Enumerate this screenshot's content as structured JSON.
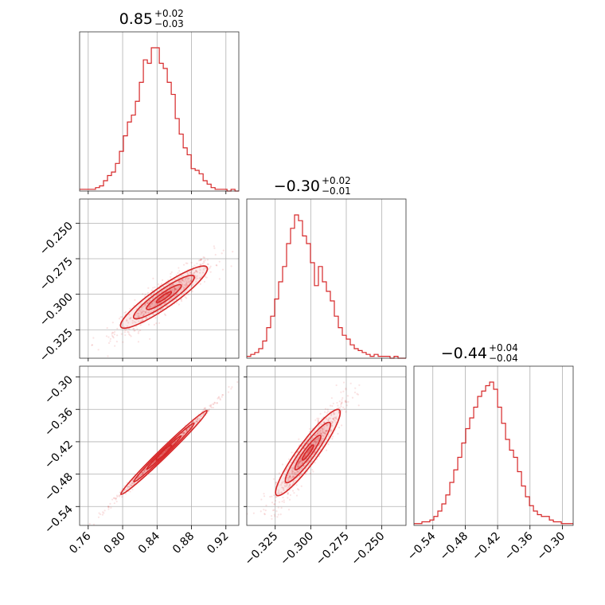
{
  "chart_data": {
    "type": "corner",
    "color": "#d62728",
    "grid": true,
    "parameters": [
      {
        "range": [
          0.75,
          0.935
        ],
        "ticks": [
          "0.76",
          "0.80",
          "0.84",
          "0.88",
          "0.92"
        ],
        "tick_values": [
          0.76,
          0.8,
          0.84,
          0.88,
          0.92
        ],
        "title": {
          "value": "0.85",
          "plus": "+0.02",
          "minus": "−0.03"
        },
        "histogram": {
          "start": 0.75,
          "bin_width": 0.00463,
          "counts": [
            1,
            1,
            1,
            1,
            2,
            3,
            6,
            9,
            11,
            16,
            23,
            32,
            40,
            44,
            52,
            63,
            76,
            74,
            83,
            83,
            74,
            71,
            63,
            56,
            42,
            33,
            25,
            21,
            13,
            12,
            10,
            6,
            4,
            2,
            1,
            1,
            1,
            0,
            1,
            0
          ]
        }
      },
      {
        "range": [
          -0.345,
          -0.233
        ],
        "ticks": [
          "−0.325",
          "−0.300",
          "−0.275",
          "−0.250"
        ],
        "tick_values": [
          -0.325,
          -0.3,
          -0.275,
          -0.25
        ],
        "title": {
          "value": "−0.30",
          "plus": "+0.02",
          "minus": "−0.01"
        },
        "histogram": {
          "start": -0.345,
          "bin_width": 0.0028,
          "counts": [
            1,
            2,
            3,
            5,
            9,
            16,
            22,
            31,
            40,
            48,
            60,
            68,
            75,
            72,
            64,
            60,
            50,
            38,
            48,
            40,
            35,
            30,
            22,
            16,
            12,
            10,
            7,
            5,
            4,
            3,
            2,
            1,
            2,
            1,
            1,
            1,
            0,
            1,
            0,
            0
          ]
        }
      },
      {
        "range": [
          -0.575,
          -0.28
        ],
        "ticks": [
          "−0.54",
          "−0.48",
          "−0.42",
          "−0.36",
          "−0.30"
        ],
        "tick_values": [
          -0.54,
          -0.48,
          -0.42,
          -0.36,
          -0.3
        ],
        "title": {
          "value": "−0.44",
          "plus": "+0.04",
          "minus": "−0.04"
        },
        "histogram": {
          "start": -0.575,
          "bin_width": 0.00738,
          "counts": [
            1,
            1,
            2,
            2,
            3,
            5,
            8,
            12,
            17,
            24,
            31,
            38,
            46,
            54,
            60,
            66,
            72,
            75,
            78,
            80,
            76,
            66,
            57,
            48,
            42,
            38,
            30,
            22,
            16,
            11,
            8,
            6,
            5,
            5,
            3,
            2,
            2,
            1,
            1,
            1
          ]
        }
      }
    ],
    "pairs": [
      {
        "x": 0,
        "y": 1,
        "slope": 0.42,
        "x_sd": 0.025,
        "resid_sd": 0.0035
      },
      {
        "x": 0,
        "y": 2,
        "slope": 1.55,
        "x_sd": 0.025,
        "resid_sd": 0.0025
      },
      {
        "x": 1,
        "y": 2,
        "slope": 3.6,
        "x_sd": 0.011,
        "resid_sd": 0.012
      }
    ],
    "centers": [
      0.848,
      -0.302,
      -0.44
    ]
  }
}
